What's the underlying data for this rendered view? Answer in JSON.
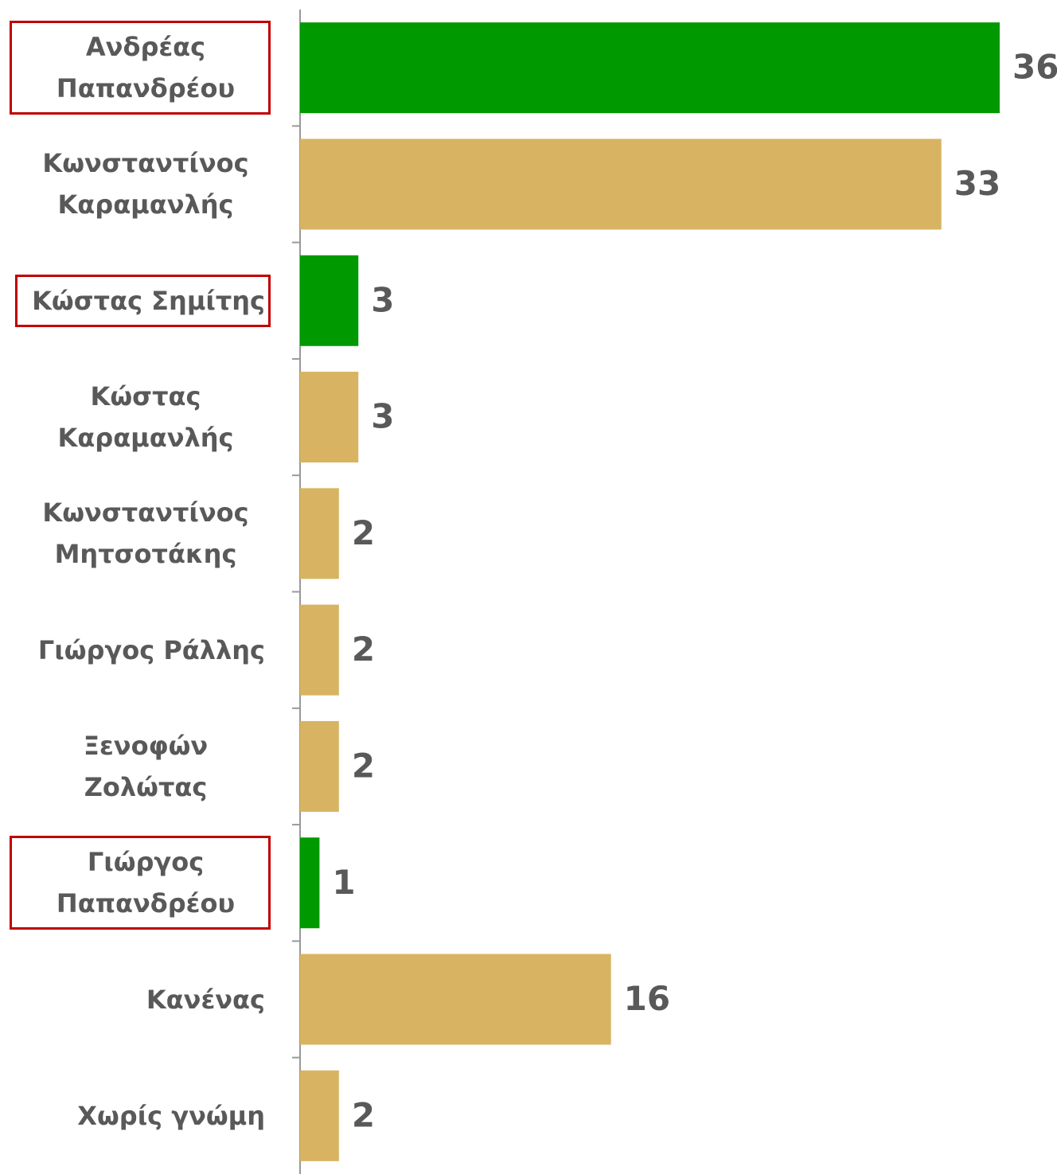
{
  "chart_data": {
    "type": "barh",
    "categories": [
      "Ανδρέας Παπανδρέου",
      "Κωνσταντίνος Καραμανλής",
      "Κώστας Σημίτης",
      "Κώστας Καραμανλής",
      "Κωνσταντίνος Μητσοτάκης",
      "Γιώργος Ράλλης",
      "Ξενοφών Ζολώτας",
      "Γιώργος Παπανδρέου",
      "Κανένας",
      "Χωρίς γνώμη"
    ],
    "values": [
      36,
      33,
      3,
      3,
      2,
      2,
      2,
      1,
      16,
      2
    ],
    "colors": [
      "#009900",
      "#d8b462",
      "#009900",
      "#d8b462",
      "#d8b462",
      "#d8b462",
      "#d8b462",
      "#009900",
      "#d8b462",
      "#d8b462"
    ],
    "boxed": [
      true,
      false,
      true,
      false,
      false,
      false,
      false,
      true,
      false,
      false
    ],
    "box_color": "#c00000"
  }
}
